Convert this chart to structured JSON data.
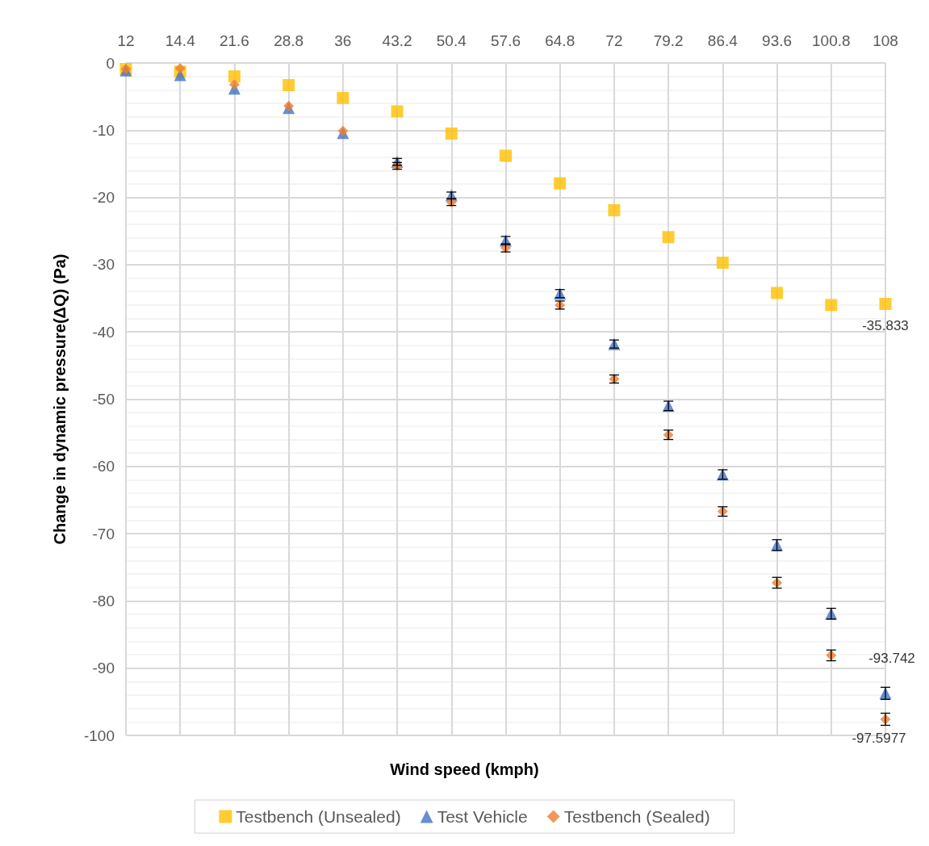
{
  "chart_data": {
    "type": "scatter",
    "xlabel": "Wind speed (kmph)",
    "ylabel": "Change in dynamic pressure(ΔQ) (Pa)",
    "categories": [
      "12",
      "14.4",
      "21.6",
      "28.8",
      "36",
      "43.2",
      "50.4",
      "57.6",
      "64.8",
      "72",
      "79.2",
      "86.4",
      "93.6",
      "100.8",
      "108"
    ],
    "ylim": [
      -100,
      0
    ],
    "yticks": [
      -100,
      -90,
      -80,
      -70,
      -60,
      -50,
      -40,
      -30,
      -20,
      -10,
      0
    ],
    "grid": true,
    "legend": "bottom",
    "series": [
      {
        "name": "Testbench (Unsealed)",
        "color": "#ffc000",
        "marker": "square",
        "values": [
          -0.9,
          -1.3,
          -2.0,
          -3.3,
          -5.2,
          -7.2,
          -10.5,
          -13.8,
          -17.9,
          -21.9,
          -25.9,
          -29.7,
          -34.2,
          -36.0,
          -35.833
        ],
        "value_labels": [
          null,
          null,
          null,
          null,
          null,
          null,
          null,
          null,
          null,
          null,
          null,
          null,
          null,
          null,
          "-35.833"
        ]
      },
      {
        "name": "Test Vehicle",
        "color": "#4472c4",
        "marker": "triangle",
        "values": [
          -1.1,
          -1.8,
          -3.8,
          -6.7,
          -10.4,
          -14.7,
          -19.7,
          -26.4,
          -34.3,
          -41.8,
          -51.0,
          -61.2,
          -71.7,
          -81.9,
          -93.742
        ],
        "errors": [
          null,
          null,
          null,
          null,
          null,
          0.5,
          0.5,
          0.6,
          0.6,
          0.6,
          0.7,
          0.7,
          0.8,
          0.8,
          0.9
        ],
        "value_labels": [
          null,
          null,
          null,
          null,
          null,
          null,
          null,
          null,
          null,
          null,
          null,
          null,
          null,
          null,
          "-93.742"
        ]
      },
      {
        "name": "Testbench (Sealed)",
        "color": "#ed7d31",
        "marker": "diamond",
        "values": [
          -0.9,
          -0.8,
          -3.2,
          -6.4,
          -10.1,
          -15.3,
          -20.7,
          -27.5,
          -36.0,
          -47.0,
          -55.3,
          -66.7,
          -77.3,
          -88.1,
          -97.5977
        ],
        "errors": [
          null,
          null,
          null,
          null,
          null,
          0.5,
          0.5,
          0.6,
          0.6,
          0.6,
          0.7,
          0.7,
          0.8,
          0.8,
          0.9
        ],
        "value_labels": [
          null,
          null,
          null,
          null,
          null,
          null,
          null,
          null,
          null,
          null,
          null,
          null,
          null,
          null,
          "-97.5977"
        ]
      }
    ]
  }
}
